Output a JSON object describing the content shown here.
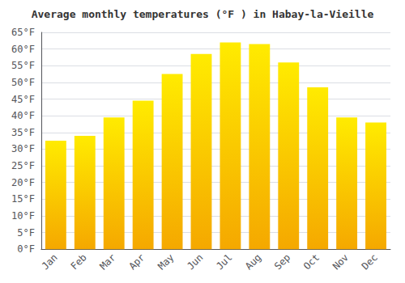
{
  "chart_data": {
    "type": "bar",
    "title": "Average monthly temperatures (°F ) in Habay-la-Vieille",
    "categories": [
      "Jan",
      "Feb",
      "Mar",
      "Apr",
      "May",
      "Jun",
      "Jul",
      "Aug",
      "Sep",
      "Oct",
      "Nov",
      "Dec"
    ],
    "values": [
      32.5,
      34.0,
      39.5,
      44.5,
      52.5,
      58.5,
      62.0,
      61.5,
      56.0,
      48.5,
      39.5,
      38.0
    ],
    "color": "#F5A800",
    "ylim": [
      0,
      65
    ],
    "yticks": [
      {
        "value": 0,
        "label": "0°F"
      },
      {
        "value": 5,
        "label": "5°F"
      },
      {
        "value": 10,
        "label": "10°F"
      },
      {
        "value": 15,
        "label": "15°F"
      },
      {
        "value": 20,
        "label": "20°F"
      },
      {
        "value": 25,
        "label": "25°F"
      },
      {
        "value": 30,
        "label": "30°F"
      },
      {
        "value": 35,
        "label": "35°F"
      },
      {
        "value": 40,
        "label": "40°F"
      },
      {
        "value": 45,
        "label": "45°F"
      },
      {
        "value": 50,
        "label": "50°F"
      },
      {
        "value": 55,
        "label": "55°F"
      },
      {
        "value": 60,
        "label": "60°F"
      },
      {
        "value": 65,
        "label": "65°F"
      }
    ],
    "grid": true
  }
}
